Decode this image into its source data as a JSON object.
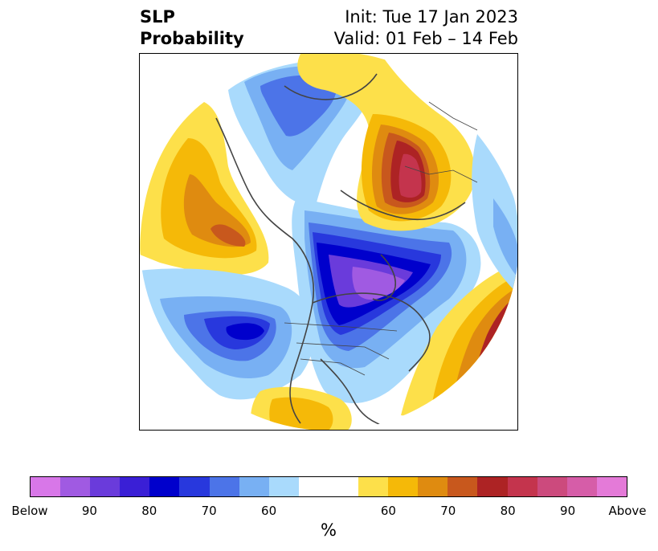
{
  "title": {
    "left_line1": "SLP",
    "left_line2": "Probability",
    "right_line1": "Init: Tue 17 Jan 2023",
    "right_line2": "Valid: 01 Feb – 14 Feb"
  },
  "colorbar": {
    "colors": [
      "#d877e8",
      "#a05ae2",
      "#6a3bdb",
      "#3a1fd6",
      "#0000cc",
      "#2838dd",
      "#4c74e8",
      "#78b0f3",
      "#a9dafc",
      "#ffffff",
      "#ffffff",
      "#fde04a",
      "#f5b908",
      "#df8b10",
      "#c8581d",
      "#ad2324",
      "#c4344d",
      "#cc4a7d",
      "#d65da8",
      "#e47ad8"
    ],
    "labels": [
      "Below",
      "90",
      "80",
      "70",
      "60",
      "60",
      "70",
      "80",
      "90",
      "Above"
    ],
    "unit": "%"
  },
  "map": {
    "anomaly_colors": {
      "below_50": "#a9dafc",
      "below_60": "#78b0f3",
      "below_70": "#4c74e8",
      "below_80": "#2838dd",
      "below_85": "#0000cc",
      "below_90": "#6a3bdb",
      "below_95": "#a05ae2",
      "above_50": "#fde04a",
      "above_60": "#f5b908",
      "above_70": "#df8b10",
      "above_80": "#c8581d",
      "above_85": "#ad2324",
      "above_90": "#c4344d"
    }
  }
}
